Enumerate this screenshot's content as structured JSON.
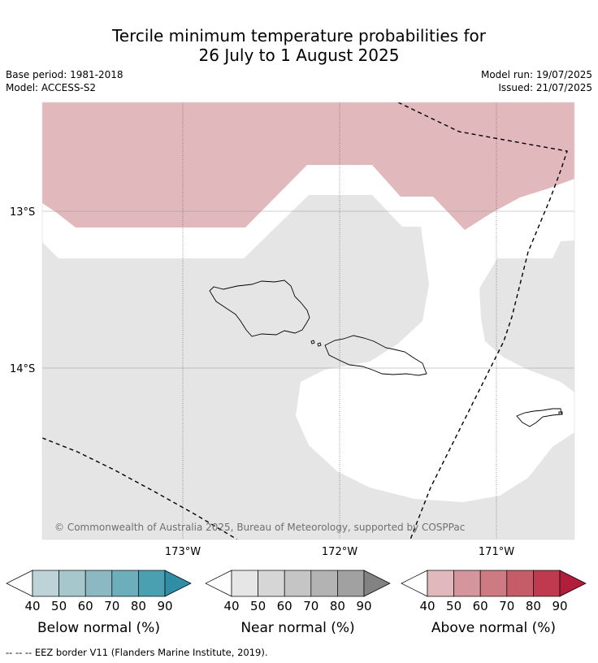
{
  "title": {
    "line1": "Tercile minimum temperature probabilities for",
    "line2": "26 July to 1 August 2025"
  },
  "meta_left": {
    "base_period": "Base period: 1981-2018",
    "model": "Model: ACCESS-S2"
  },
  "meta_right": {
    "model_run": "Model run: 19/07/2025",
    "issued": "Issued: 21/07/2025"
  },
  "map": {
    "lat_labels": [
      "13°S",
      "14°S"
    ],
    "lon_labels": [
      "173°W",
      "172°W",
      "171°W"
    ],
    "copyright": "© Commonwealth of Australia 2025, Bureau of Meteorology, supported by COSPPac",
    "colors": {
      "above_region": "#e1b8bc",
      "near_region": "#e5e5e5",
      "ocean": "#ffffff",
      "eez_line": "#000000"
    }
  },
  "legends": [
    {
      "label": "Below normal (%)",
      "ticks": [
        "40",
        "50",
        "60",
        "70",
        "80",
        "90"
      ],
      "colors": [
        "#ffffff",
        "#bdd3d8",
        "#a6c7cc",
        "#8bb8c2",
        "#6caebb",
        "#4a9fb0",
        "#2f8ea6"
      ]
    },
    {
      "label": "Near normal (%)",
      "ticks": [
        "40",
        "50",
        "60",
        "70",
        "80",
        "90"
      ],
      "colors": [
        "#ffffff",
        "#e6e6e6",
        "#d6d6d6",
        "#c5c5c5",
        "#b3b3b3",
        "#a1a1a1",
        "#828282"
      ]
    },
    {
      "label": "Above normal (%)",
      "ticks": [
        "40",
        "50",
        "60",
        "70",
        "80",
        "90"
      ],
      "colors": [
        "#ffffff",
        "#e1b8bc",
        "#d5959c",
        "#cd7a82",
        "#c45d68",
        "#bf3a4f",
        "#b21d3c"
      ]
    }
  ],
  "footnote": "--  --  -- EEZ border V11 (Flanders Marine Institute, 2019)."
}
